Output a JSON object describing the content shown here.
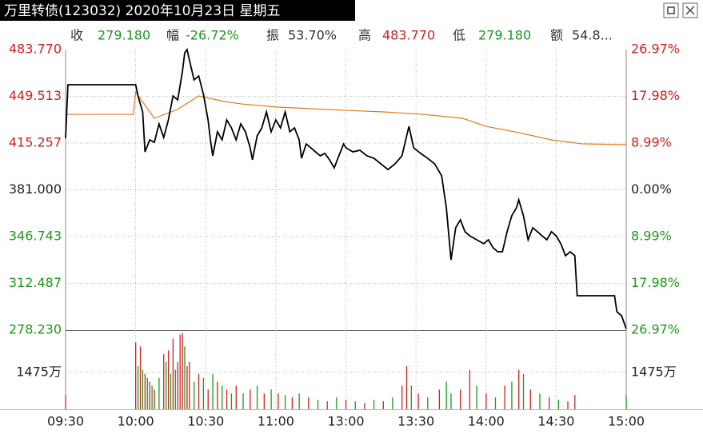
{
  "chart_data": {
    "type": "intraday",
    "title": "万里转债(123032) 2020年10月23日 星期五",
    "info": [
      {
        "label": "收",
        "value": "279.180",
        "color": "#1a9a1a"
      },
      {
        "label": "幅",
        "value": "-26.72%",
        "color": "#1a9a1a"
      },
      {
        "label": "振",
        "value": "53.70%",
        "color": "#333333"
      },
      {
        "label": "高",
        "value": "483.770",
        "color": "#d0201f"
      },
      {
        "label": "低",
        "value": "279.180",
        "color": "#1a9a1a"
      },
      {
        "label": "额",
        "value": "54.8...",
        "color": "#333333"
      }
    ],
    "xticks": [
      "09:30",
      "10:00",
      "10:30",
      "11:00",
      "13:00",
      "13:30",
      "14:00",
      "14:30",
      "15:00"
    ],
    "ylim": [
      278.23,
      483.77
    ],
    "yticks": [
      {
        "value": 483.77,
        "label": "483.770"
      },
      {
        "value": 449.513,
        "label": "449.513"
      },
      {
        "value": 415.257,
        "label": "415.257"
      },
      {
        "value": 381,
        "label": "381.000"
      },
      {
        "value": 346.743,
        "label": "346.743"
      },
      {
        "value": 312.487,
        "label": "312.487"
      },
      {
        "value": 278.23,
        "label": "278.230"
      }
    ],
    "y2lim": [
      -26.97,
      26.97
    ],
    "y2ticks": [
      {
        "value": 26.97,
        "label": "26.97%"
      },
      {
        "value": 17.98,
        "label": "17.98%"
      },
      {
        "value": 8.99,
        "label": "8.99%"
      },
      {
        "value": 0,
        "label": "0.00%"
      },
      {
        "value": -8.99,
        "label": "8.99%"
      },
      {
        "value": -17.98,
        "label": "17.98%"
      },
      {
        "value": -26.97,
        "label": "26.97%"
      }
    ],
    "up_color": "#d0201f",
    "down_color": "#1a9a1a",
    "flat_color": "#222222",
    "grid": true,
    "price": {
      "color": "#000000",
      "x": [
        "09:30",
        "09:31",
        "10:00",
        "10:01",
        "10:03",
        "10:04",
        "10:06",
        "10:08",
        "10:10",
        "10:12",
        "10:14",
        "10:16",
        "10:18",
        "10:20",
        "10:21",
        "10:22",
        "10:23",
        "10:25",
        "10:27",
        "10:29",
        "10:31",
        "10:32",
        "10:33",
        "10:35",
        "10:37",
        "10:39",
        "10:41",
        "10:43",
        "10:45",
        "10:47",
        "10:49",
        "10:50",
        "10:52",
        "10:54",
        "10:56",
        "10:58",
        "11:00",
        "11:02",
        "11:04",
        "11:06",
        "11:08",
        "11:10",
        "11:11",
        "11:13",
        "11:15",
        "11:17",
        "11:19",
        "11:21",
        "11:23",
        "11:25",
        "11:27",
        "11:29",
        "11:30",
        "13:03",
        "13:06",
        "13:09",
        "13:12",
        "13:15",
        "13:18",
        "13:21",
        "13:24",
        "13:26",
        "13:27",
        "13:29",
        "13:32",
        "13:35",
        "13:38",
        "13:41",
        "13:43",
        "13:45",
        "13:47",
        "13:49",
        "13:51",
        "13:53",
        "13:56",
        "13:59",
        "14:01",
        "14:03",
        "14:05",
        "14:07",
        "14:09",
        "14:11",
        "14:13",
        "14:14",
        "14:16",
        "14:18",
        "14:20",
        "14:22",
        "14:24",
        "14:26",
        "14:28",
        "14:30",
        "14:32",
        "14:34",
        "14:36",
        "14:38",
        "14:39",
        "14:55",
        "14:56",
        "14:58",
        "15:00"
      ],
      "values": [
        418.8,
        458.0,
        458.0,
        449.8,
        438.1,
        408.8,
        417.6,
        415.8,
        429.3,
        419.4,
        432.2,
        449.8,
        446.9,
        467.4,
        481.4,
        483.77,
        476.2,
        461.5,
        464.4,
        451.0,
        432.2,
        417.6,
        405.9,
        423.5,
        417.6,
        432.2,
        426.4,
        417.6,
        429.3,
        423.5,
        411.8,
        403.0,
        420.5,
        426.4,
        438.1,
        423.5,
        432.2,
        426.4,
        438.1,
        423.5,
        426.4,
        417.6,
        404.1,
        414.6,
        411.8,
        408.8,
        405.9,
        407.7,
        403.0,
        397.1,
        405.9,
        414.6,
        411.8,
        408.8,
        410.0,
        405.9,
        404.1,
        400.0,
        395.9,
        400.0,
        405.9,
        420.5,
        427.5,
        411.8,
        407.7,
        404.1,
        400.0,
        391.2,
        367.8,
        329.7,
        353.2,
        359.0,
        350.3,
        347.3,
        344.4,
        341.5,
        344.4,
        338.6,
        335.6,
        335.6,
        350.3,
        362.0,
        367.8,
        373.7,
        362.0,
        344.4,
        353.2,
        350.3,
        347.3,
        344.4,
        350.3,
        347.3,
        341.5,
        332.7,
        335.6,
        332.7,
        303.4,
        303.4,
        291.7,
        288.8,
        279.18
      ]
    },
    "average": {
      "color": "#e07b1a",
      "x": [
        "09:30",
        "09:59",
        "10:00",
        "10:08",
        "10:18",
        "10:27",
        "10:38",
        "10:45",
        "11:01",
        "11:29",
        "13:16",
        "13:33",
        "13:50",
        "14:00",
        "14:14",
        "14:28",
        "14:41",
        "15:00"
      ],
      "values": [
        436.3,
        436.3,
        452.7,
        433.4,
        440.0,
        449.8,
        445.7,
        444.0,
        441.6,
        439.3,
        438.1,
        436.3,
        433.4,
        427.5,
        422.9,
        417.6,
        414.7,
        414.1
      ]
    },
    "volume": {
      "ylim": [
        0,
        3100
      ],
      "yticks": [
        {
          "value": 1475,
          "label": "1475万"
        }
      ],
      "x": [
        "09:30",
        "10:00",
        "10:01",
        "10:02",
        "10:03",
        "10:04",
        "10:05",
        "10:06",
        "10:07",
        "10:08",
        "10:10",
        "10:12",
        "10:13",
        "10:14",
        "10:15",
        "10:16",
        "10:17",
        "10:18",
        "10:19",
        "10:20",
        "10:21",
        "10:22",
        "10:23",
        "10:25",
        "10:27",
        "10:29",
        "10:31",
        "10:33",
        "10:35",
        "10:37",
        "10:39",
        "10:41",
        "10:43",
        "10:46",
        "10:49",
        "10:52",
        "10:55",
        "10:58",
        "11:01",
        "11:04",
        "11:07",
        "11:10",
        "11:14",
        "11:18",
        "11:22",
        "11:26",
        "11:30",
        "13:04",
        "13:08",
        "13:12",
        "13:16",
        "13:20",
        "13:24",
        "13:26",
        "13:28",
        "13:31",
        "13:35",
        "13:40",
        "13:43",
        "13:45",
        "13:49",
        "13:53",
        "13:56",
        "14:00",
        "14:04",
        "14:08",
        "14:11",
        "14:14",
        "14:16",
        "14:19",
        "14:23",
        "14:27",
        "14:31",
        "14:35",
        "14:38",
        "15:00"
      ],
      "values": [
        565,
        2669,
        1727,
        2512,
        1570,
        1413,
        1256,
        1099,
        942,
        785,
        1256,
        2198,
        1884,
        2355,
        1413,
        2826,
        1570,
        1884,
        2983,
        3046,
        2512,
        1727,
        1884,
        1099,
        1413,
        1256,
        785,
        1413,
        1099,
        942,
        785,
        628,
        942,
        628,
        785,
        942,
        628,
        785,
        628,
        565,
        471,
        628,
        471,
        377,
        314,
        471,
        377,
        314,
        251,
        377,
        314,
        471,
        942,
        1727,
        942,
        628,
        471,
        785,
        1099,
        628,
        785,
        1570,
        942,
        628,
        471,
        942,
        1099,
        1570,
        1413,
        785,
        628,
        471,
        377,
        314,
        565,
        565
      ],
      "colors": [
        "#d0201f",
        "#d0201f",
        "#1a9a1a",
        "#d0201f",
        "#1a9a1a",
        "#d0201f",
        "#1a9a1a",
        "#d0201f",
        "#1a9a1a",
        "#d0201f",
        "#1a9a1a",
        "#d0201f",
        "#1a9a1a",
        "#d0201f",
        "#1a9a1a",
        "#d0201f",
        "#1a9a1a",
        "#d0201f",
        "#d0201f",
        "#d0201f",
        "#1a9a1a",
        "#d0201f",
        "#d0201f",
        "#1a9a1a",
        "#d0201f",
        "#1a9a1a",
        "#d0201f",
        "#1a9a1a",
        "#d0201f",
        "#1a9a1a",
        "#d0201f",
        "#1a9a1a",
        "#d0201f",
        "#1a9a1a",
        "#d0201f",
        "#1a9a1a",
        "#d0201f",
        "#1a9a1a",
        "#d0201f",
        "#1a9a1a",
        "#d0201f",
        "#1a9a1a",
        "#d0201f",
        "#1a9a1a",
        "#d0201f",
        "#1a9a1a",
        "#d0201f",
        "#1a9a1a",
        "#d0201f",
        "#1a9a1a",
        "#d0201f",
        "#1a9a1a",
        "#d0201f",
        "#d0201f",
        "#1a9a1a",
        "#d0201f",
        "#1a9a1a",
        "#d0201f",
        "#1a9a1a",
        "#1a9a1a",
        "#d0201f",
        "#d0201f",
        "#1a9a1a",
        "#d0201f",
        "#1a9a1a",
        "#d0201f",
        "#1a9a1a",
        "#d0201f",
        "#1a9a1a",
        "#d0201f",
        "#1a9a1a",
        "#d0201f",
        "#1a9a1a",
        "#d0201f",
        "#d0201f",
        "#1a9a1a"
      ]
    }
  }
}
